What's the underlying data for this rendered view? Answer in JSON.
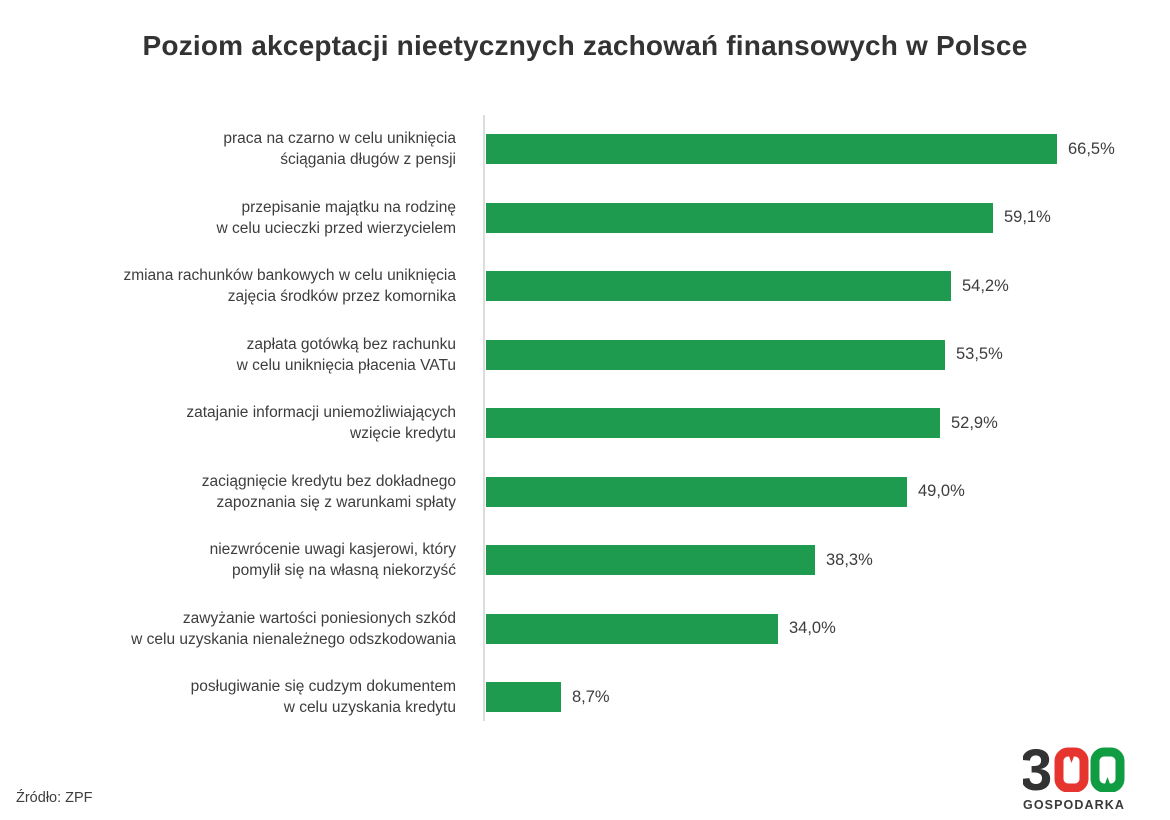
{
  "chart_data": {
    "type": "bar",
    "orientation": "horizontal",
    "title": "Poziom akceptacji nieetycznych zachowań finansowych w Polsce",
    "xlabel": "",
    "ylabel": "",
    "xlim": [
      0,
      80
    ],
    "grid": false,
    "legend": "none",
    "bar_color": "#1e9b4e",
    "axis_color": "#dcdcdc",
    "categories": [
      "praca na czarno w celu uniknięcia ściągania długów z pensji",
      "przepisanie majątku na rodzinę w celu ucieczki przed wierzycielem",
      "zmiana rachunków bankowych w celu uniknięcia zajęcia środków przez komornika",
      "zapłata gotówką bez rachunku w celu uniknięcia płacenia VATu",
      "zatajanie informacji uniemożliwiających wzięcie kredytu",
      "zaciągnięcie kredytu bez dokładnego zapoznania się z warunkami spłaty",
      "niezwrócenie uwagi kasjerowi, który pomylił się na własną niekorzyść",
      "zawyżanie wartości poniesionych szkód w celu uzyskania nienależnego odszkodowania",
      "posługiwanie się cudzym dokumentem w celu uzyskania kredytu"
    ],
    "values": [
      66.5,
      59.1,
      54.2,
      53.5,
      52.9,
      49.0,
      38.3,
      34.0,
      8.7
    ],
    "items": [
      {
        "label_lines": [
          "praca na czarno w celu uniknięcia",
          "ściągania długów z pensji"
        ],
        "value": 66.5,
        "value_label": "66,5%"
      },
      {
        "label_lines": [
          "przepisanie majątku na rodzinę",
          "w celu ucieczki przed wierzycielem"
        ],
        "value": 59.1,
        "value_label": "59,1%"
      },
      {
        "label_lines": [
          "zmiana rachunków bankowych w celu uniknięcia",
          "zajęcia środków przez komornika"
        ],
        "value": 54.2,
        "value_label": "54,2%"
      },
      {
        "label_lines": [
          "zapłata gotówką bez rachunku",
          "w celu uniknięcia płacenia VATu"
        ],
        "value": 53.5,
        "value_label": "53,5%"
      },
      {
        "label_lines": [
          "zatajanie informacji uniemożliwiających",
          "wzięcie kredytu"
        ],
        "value": 52.9,
        "value_label": "52,9%"
      },
      {
        "label_lines": [
          "zaciągnięcie kredytu bez dokładnego",
          "zapoznania się z warunkami spłaty"
        ],
        "value": 49.0,
        "value_label": "49,0%"
      },
      {
        "label_lines": [
          "niezwrócenie uwagi kasjerowi, który",
          "pomylił się na własną niekorzyść"
        ],
        "value": 38.3,
        "value_label": "38,3%"
      },
      {
        "label_lines": [
          "zawyżanie wartości poniesionych szkód",
          "w celu uzyskania nienależnego odszkodowania"
        ],
        "value": 34.0,
        "value_label": "34,0%"
      },
      {
        "label_lines": [
          "posługiwanie się cudzym dokumentem",
          "w celu uzyskania kredytu"
        ],
        "value": 8.7,
        "value_label": "8,7%"
      }
    ]
  },
  "footer": {
    "source": "Źródło: ZPF",
    "brand_number": "300",
    "brand": "GOSPODARKA",
    "logo_colors": {
      "dark": "#333333",
      "red": "#e6352f",
      "green": "#109c43"
    }
  }
}
